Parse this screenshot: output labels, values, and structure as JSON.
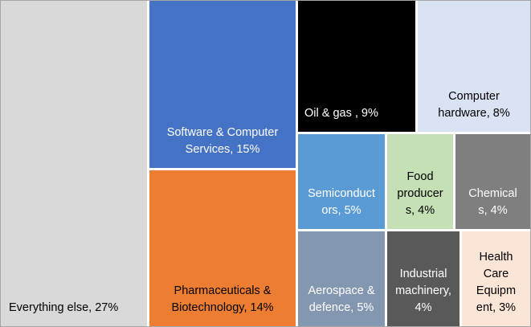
{
  "chart_data": {
    "type": "treemap",
    "title": "",
    "items": [
      {
        "label": "Everything else, 27%",
        "name": "Everything else",
        "value": 27,
        "color": "#d9d9d9",
        "text_color": "#000000"
      },
      {
        "label": "Software & Computer Services, 15%",
        "name": "Software & Computer Services",
        "value": 15,
        "color": "#4472c4",
        "text_color": "#ffffff"
      },
      {
        "label": "Pharmaceuticals & Biotechnology, 14%",
        "name": "Pharmaceuticals & Biotechnology",
        "value": 14,
        "color": "#ed7d31",
        "text_color": "#000000"
      },
      {
        "label": "Oil & gas , 9%",
        "name": "Oil & gas",
        "value": 9,
        "color": "#000000",
        "text_color": "#ffffff"
      },
      {
        "label": "Computer hardware, 8%",
        "name": "Computer hardware",
        "value": 8,
        "color": "#dae3f3",
        "text_color": "#000000"
      },
      {
        "label": "Semiconductors, 5%",
        "name": "Semiconductors",
        "value": 5,
        "color": "#5b9bd5",
        "text_color": "#ffffff"
      },
      {
        "label": "Food producers, 4%",
        "name": "Food producers",
        "value": 4,
        "color": "#c5e0b4",
        "text_color": "#000000"
      },
      {
        "label": "Chemicals, 4%",
        "name": "Chemicals",
        "value": 4,
        "color": "#7f7f7f",
        "text_color": "#ffffff"
      },
      {
        "label": "Aerospace & defence, 5%",
        "name": "Aerospace & defence",
        "value": 5,
        "color": "#8497b0",
        "text_color": "#ffffff"
      },
      {
        "label": "Industrial machinery, 4%",
        "name": "Industrial machinery",
        "value": 4,
        "color": "#595959",
        "text_color": "#ffffff"
      },
      {
        "label": "Health Care Equipment, 3%",
        "name": "Health Care Equipment",
        "value": 3,
        "color": "#fbe5d6",
        "text_color": "#000000"
      }
    ]
  }
}
